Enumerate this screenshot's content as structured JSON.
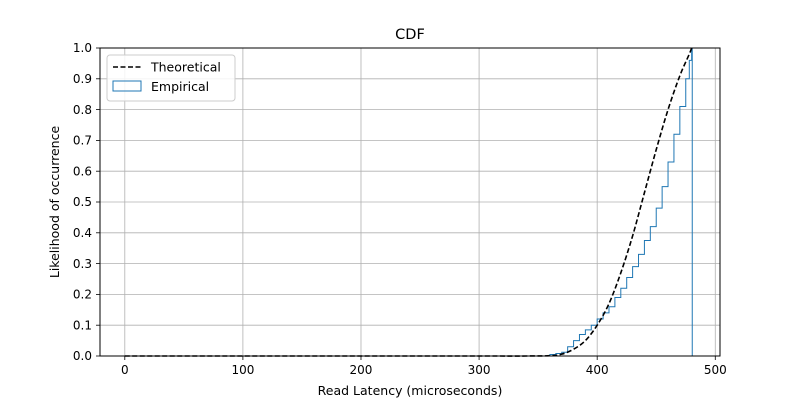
{
  "chart_data": {
    "type": "line",
    "title": "CDF",
    "xlabel": "Read Latency (microseconds)",
    "ylabel": "Likelihood of occurrence",
    "xlim": [
      -21,
      504
    ],
    "ylim": [
      0.0,
      1.0
    ],
    "x_ticks": [
      0,
      100,
      200,
      300,
      400,
      500
    ],
    "y_ticks": [
      0.0,
      0.1,
      0.2,
      0.3,
      0.4,
      0.5,
      0.6,
      0.7,
      0.8,
      0.9,
      1.0
    ],
    "y_tick_labels": [
      "0.0",
      "0.1",
      "0.2",
      "0.3",
      "0.4",
      "0.5",
      "0.6",
      "0.7",
      "0.8",
      "0.9",
      "1.0"
    ],
    "grid": true,
    "legend_position": "top-left",
    "series": [
      {
        "name": "Theoretical",
        "style": "dashed",
        "color": "#000000",
        "x": [
          0,
          100,
          200,
          300,
          340,
          360,
          370,
          380,
          390,
          400,
          410,
          420,
          430,
          440,
          450,
          460,
          470,
          478,
          480
        ],
        "y": [
          0.0,
          0.0,
          0.0,
          0.0,
          0.0,
          0.001,
          0.006,
          0.022,
          0.05,
          0.1,
          0.17,
          0.27,
          0.39,
          0.53,
          0.67,
          0.8,
          0.91,
          0.98,
          1.0
        ]
      },
      {
        "name": "Empirical",
        "style": "step",
        "color": "#1f77b4",
        "x": [
          0,
          355,
          360,
          365,
          370,
          375,
          380,
          385,
          390,
          395,
          400,
          405,
          410,
          415,
          420,
          425,
          430,
          435,
          440,
          445,
          450,
          455,
          460,
          465,
          470,
          475,
          478,
          480,
          480.5
        ],
        "y": [
          0.0,
          0.0,
          0.005,
          0.008,
          0.012,
          0.03,
          0.05,
          0.07,
          0.085,
          0.1,
          0.12,
          0.14,
          0.16,
          0.19,
          0.22,
          0.255,
          0.29,
          0.33,
          0.375,
          0.42,
          0.48,
          0.55,
          0.63,
          0.72,
          0.81,
          0.9,
          0.96,
          1.0,
          0.0
        ]
      }
    ]
  }
}
